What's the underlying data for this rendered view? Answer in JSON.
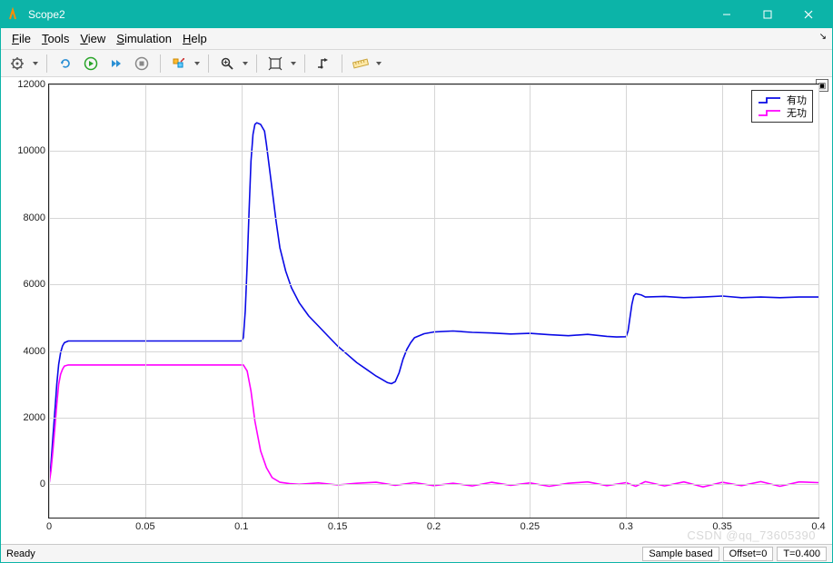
{
  "window": {
    "title": "Scope2"
  },
  "menus": {
    "file": "File",
    "tools": "Tools",
    "view": "View",
    "simulation": "Simulation",
    "help": "Help"
  },
  "toolbar_icons": {
    "config": "config-gear",
    "restart": "restart",
    "play": "play",
    "step": "step-fwd",
    "stop": "stop",
    "highlight": "highlight",
    "zoom": "zoom",
    "pan": "pan",
    "autoscale": "autoscale",
    "measure": "measure"
  },
  "chart": {
    "type": "line",
    "xlim": [
      0,
      0.4
    ],
    "ylim": [
      -1000,
      12000
    ],
    "xticks": [
      0,
      0.05,
      0.1,
      0.15,
      0.2,
      0.25,
      0.3,
      0.35,
      0.4
    ],
    "yticks": [
      0,
      2000,
      4000,
      6000,
      8000,
      10000,
      12000
    ],
    "grid_color": "#d6d6d6",
    "background": "#ffffff",
    "border_color": "#222222",
    "line_width": 1.6,
    "series": [
      {
        "name": "有功",
        "color": "#0a0ae6",
        "points": [
          [
            0.0,
            0
          ],
          [
            0.001,
            600
          ],
          [
            0.002,
            1400
          ],
          [
            0.003,
            2200
          ],
          [
            0.004,
            3000
          ],
          [
            0.005,
            3600
          ],
          [
            0.006,
            3950
          ],
          [
            0.007,
            4150
          ],
          [
            0.008,
            4250
          ],
          [
            0.01,
            4300
          ],
          [
            0.02,
            4300
          ],
          [
            0.03,
            4300
          ],
          [
            0.05,
            4300
          ],
          [
            0.08,
            4300
          ],
          [
            0.1,
            4300
          ],
          [
            0.101,
            4400
          ],
          [
            0.102,
            5200
          ],
          [
            0.103,
            6600
          ],
          [
            0.104,
            8200
          ],
          [
            0.105,
            9700
          ],
          [
            0.106,
            10500
          ],
          [
            0.107,
            10800
          ],
          [
            0.108,
            10850
          ],
          [
            0.11,
            10800
          ],
          [
            0.112,
            10600
          ],
          [
            0.113,
            10200
          ],
          [
            0.115,
            9300
          ],
          [
            0.118,
            7900
          ],
          [
            0.12,
            7100
          ],
          [
            0.123,
            6400
          ],
          [
            0.126,
            5900
          ],
          [
            0.13,
            5450
          ],
          [
            0.135,
            5050
          ],
          [
            0.14,
            4750
          ],
          [
            0.145,
            4450
          ],
          [
            0.15,
            4150
          ],
          [
            0.155,
            3900
          ],
          [
            0.16,
            3650
          ],
          [
            0.165,
            3450
          ],
          [
            0.17,
            3250
          ],
          [
            0.173,
            3150
          ],
          [
            0.176,
            3050
          ],
          [
            0.178,
            3020
          ],
          [
            0.18,
            3080
          ],
          [
            0.182,
            3350
          ],
          [
            0.184,
            3750
          ],
          [
            0.186,
            4050
          ],
          [
            0.188,
            4250
          ],
          [
            0.19,
            4400
          ],
          [
            0.195,
            4520
          ],
          [
            0.2,
            4570
          ],
          [
            0.21,
            4600
          ],
          [
            0.22,
            4560
          ],
          [
            0.23,
            4540
          ],
          [
            0.24,
            4510
          ],
          [
            0.25,
            4530
          ],
          [
            0.26,
            4490
          ],
          [
            0.27,
            4460
          ],
          [
            0.28,
            4500
          ],
          [
            0.29,
            4440
          ],
          [
            0.295,
            4420
          ],
          [
            0.3,
            4430
          ],
          [
            0.301,
            4600
          ],
          [
            0.302,
            5000
          ],
          [
            0.303,
            5400
          ],
          [
            0.304,
            5650
          ],
          [
            0.305,
            5720
          ],
          [
            0.308,
            5680
          ],
          [
            0.31,
            5620
          ],
          [
            0.32,
            5640
          ],
          [
            0.33,
            5600
          ],
          [
            0.34,
            5620
          ],
          [
            0.35,
            5650
          ],
          [
            0.36,
            5600
          ],
          [
            0.37,
            5620
          ],
          [
            0.38,
            5600
          ],
          [
            0.39,
            5620
          ],
          [
            0.4,
            5620
          ]
        ]
      },
      {
        "name": "无功",
        "color": "#ff00ff",
        "points": [
          [
            0.0,
            0
          ],
          [
            0.001,
            400
          ],
          [
            0.002,
            1000
          ],
          [
            0.003,
            1700
          ],
          [
            0.004,
            2400
          ],
          [
            0.005,
            3000
          ],
          [
            0.006,
            3300
          ],
          [
            0.007,
            3450
          ],
          [
            0.008,
            3550
          ],
          [
            0.01,
            3580
          ],
          [
            0.02,
            3580
          ],
          [
            0.05,
            3580
          ],
          [
            0.08,
            3580
          ],
          [
            0.1,
            3580
          ],
          [
            0.101,
            3580
          ],
          [
            0.103,
            3400
          ],
          [
            0.105,
            2800
          ],
          [
            0.107,
            1900
          ],
          [
            0.11,
            1000
          ],
          [
            0.113,
            500
          ],
          [
            0.116,
            200
          ],
          [
            0.12,
            60
          ],
          [
            0.125,
            20
          ],
          [
            0.13,
            0
          ],
          [
            0.14,
            40
          ],
          [
            0.15,
            -20
          ],
          [
            0.16,
            30
          ],
          [
            0.17,
            60
          ],
          [
            0.18,
            -30
          ],
          [
            0.19,
            50
          ],
          [
            0.2,
            -40
          ],
          [
            0.21,
            30
          ],
          [
            0.22,
            -50
          ],
          [
            0.23,
            60
          ],
          [
            0.24,
            -30
          ],
          [
            0.25,
            40
          ],
          [
            0.26,
            -60
          ],
          [
            0.27,
            30
          ],
          [
            0.28,
            70
          ],
          [
            0.29,
            -40
          ],
          [
            0.3,
            50
          ],
          [
            0.305,
            -60
          ],
          [
            0.31,
            80
          ],
          [
            0.32,
            -50
          ],
          [
            0.33,
            70
          ],
          [
            0.34,
            -80
          ],
          [
            0.35,
            60
          ],
          [
            0.36,
            -40
          ],
          [
            0.37,
            80
          ],
          [
            0.38,
            -60
          ],
          [
            0.39,
            70
          ],
          [
            0.4,
            50
          ]
        ]
      }
    ],
    "legend": {
      "position": "top-right",
      "labels": [
        "有功",
        "无功"
      ]
    }
  },
  "status": {
    "ready": "Ready",
    "mode": "Sample based",
    "offset": "Offset=0",
    "t": "T=0.400"
  },
  "watermark": "CSDN @qq_73605390"
}
